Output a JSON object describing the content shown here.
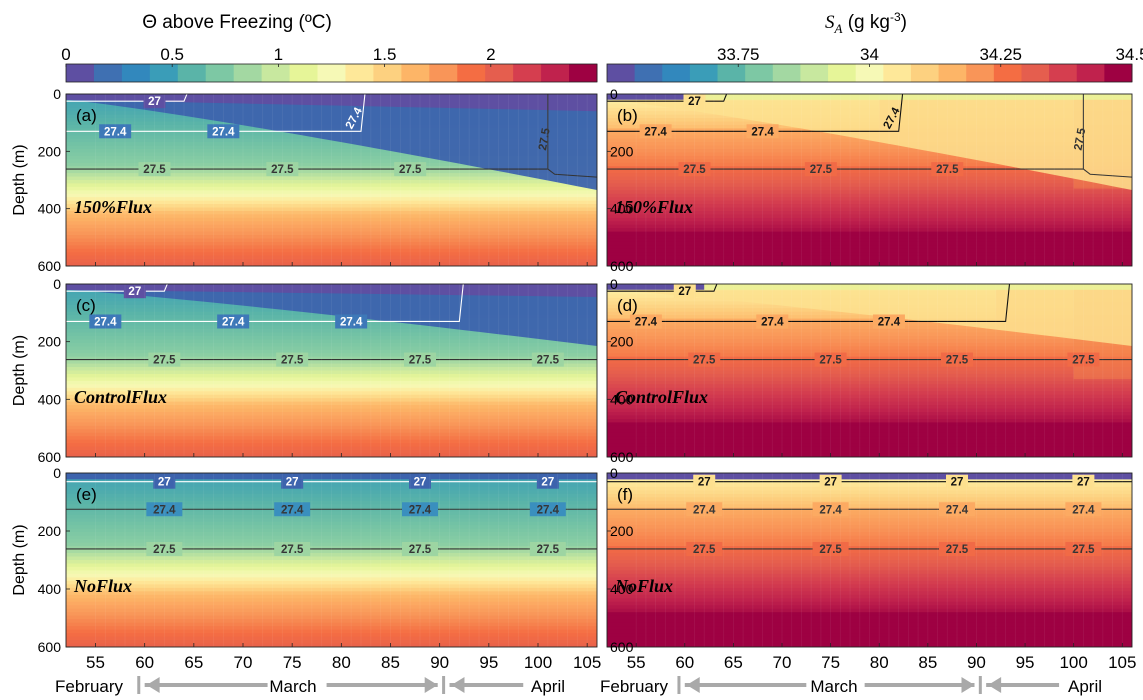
{
  "colorbars": [
    {
      "title": "Θ above Freezing (ºC)",
      "ticks": [
        "0",
        "0.5",
        "1",
        "1.5",
        "2"
      ],
      "tick_values": [
        0,
        0.5,
        1,
        1.5,
        2
      ],
      "range": [
        0,
        2.5
      ],
      "colors": [
        "#5e4fa2",
        "#3f70b2",
        "#3288bd",
        "#3a9db8",
        "#5ab4a8",
        "#7dc8a4",
        "#a3d8a2",
        "#c8e89f",
        "#e6f598",
        "#f6f9b6",
        "#fee899",
        "#fdd180",
        "#fdb567",
        "#f99558",
        "#f46d43",
        "#e55e4e",
        "#d53e4f",
        "#c0224d",
        "#9e0142"
      ]
    },
    {
      "title_symbol": "S",
      "title_sub": "A",
      "title_unit": " (g kg",
      "title_exp": "-3",
      "title_close": ")",
      "ticks": [
        "33.75",
        "34",
        "34.25",
        "34.5"
      ],
      "tick_values": [
        33.75,
        34,
        34.25,
        34.5
      ],
      "range": [
        33.5,
        34.5
      ],
      "colors": [
        "#5e4fa2",
        "#3f70b2",
        "#3288bd",
        "#3a9db8",
        "#5ab4a8",
        "#7dc8a4",
        "#a3d8a2",
        "#c8e89f",
        "#e6f598",
        "#f6f9b6",
        "#fee899",
        "#fdd180",
        "#fdb567",
        "#f99558",
        "#f46d43",
        "#e55e4e",
        "#d53e4f",
        "#c0224d",
        "#9e0142"
      ]
    }
  ],
  "axes": {
    "ylabel": "Depth (m)",
    "yticks": [
      "0",
      "200",
      "400",
      "600"
    ],
    "ytick_values": [
      0,
      200,
      400,
      600
    ],
    "ylim": [
      0,
      600
    ],
    "xticks": [
      "55",
      "60",
      "65",
      "70",
      "75",
      "80",
      "85",
      "90",
      "95",
      "100",
      "105"
    ],
    "xtick_values": [
      55,
      60,
      65,
      70,
      75,
      80,
      85,
      90,
      95,
      100,
      105
    ],
    "xlim": [
      52,
      106
    ]
  },
  "months": {
    "february": "February",
    "march": "March",
    "april": "April"
  },
  "chart_data": [
    {
      "type": "heatmap",
      "panel": "(a)",
      "label": "150%Flux",
      "variable": "theta",
      "contours": [
        {
          "level": "27",
          "labels": [
            "27"
          ]
        },
        {
          "level": "27.4",
          "labels": [
            "27.4",
            "27.4",
            "27.4"
          ]
        },
        {
          "level": "27.5",
          "labels": [
            "27.5",
            "27.5",
            "27.5",
            "27.5"
          ]
        }
      ]
    },
    {
      "type": "heatmap",
      "panel": "(b)",
      "label": "150%Flux",
      "variable": "salinity",
      "contours": [
        {
          "level": "27",
          "labels": [
            "27"
          ]
        },
        {
          "level": "27.4",
          "labels": [
            "27.4",
            "27.4",
            "27.4"
          ]
        },
        {
          "level": "27.5",
          "labels": [
            "27.5",
            "27.5",
            "27.5",
            "27.5"
          ]
        }
      ]
    },
    {
      "type": "heatmap",
      "panel": "(c)",
      "label": "ControlFlux",
      "variable": "theta",
      "contours": [
        {
          "level": "27",
          "labels": [
            "27"
          ]
        },
        {
          "level": "27.4",
          "labels": [
            "27.4",
            "27.4",
            "27.4"
          ]
        },
        {
          "level": "27.5",
          "labels": [
            "27.5",
            "27.5",
            "27.5",
            "27.5"
          ]
        }
      ]
    },
    {
      "type": "heatmap",
      "panel": "(d)",
      "label": "ControlFlux",
      "variable": "salinity",
      "contours": [
        {
          "level": "27",
          "labels": [
            "27"
          ]
        },
        {
          "level": "27.4",
          "labels": [
            "27.4",
            "27.4",
            "27.4"
          ]
        },
        {
          "level": "27.5",
          "labels": [
            "27.5",
            "27.5",
            "27.5",
            "27.5"
          ]
        }
      ]
    },
    {
      "type": "heatmap",
      "panel": "(e)",
      "label": "NoFlux",
      "variable": "theta",
      "contours": [
        {
          "level": "27",
          "labels": [
            "27",
            "27",
            "27",
            "27"
          ]
        },
        {
          "level": "27.4",
          "labels": [
            "27.4",
            "27.4",
            "27.4",
            "27.4"
          ]
        },
        {
          "level": "27.5",
          "labels": [
            "27.5",
            "27.5",
            "27.5",
            "27.5"
          ]
        }
      ]
    },
    {
      "type": "heatmap",
      "panel": "(f)",
      "label": "NoFlux",
      "variable": "salinity",
      "contours": [
        {
          "level": "27",
          "labels": [
            "27",
            "27",
            "27",
            "27"
          ]
        },
        {
          "level": "27.4",
          "labels": [
            "27.4",
            "27.4",
            "27.4",
            "27.4"
          ]
        },
        {
          "level": "27.5",
          "labels": [
            "27.5",
            "27.5",
            "27.5",
            "27.5"
          ]
        }
      ]
    }
  ]
}
